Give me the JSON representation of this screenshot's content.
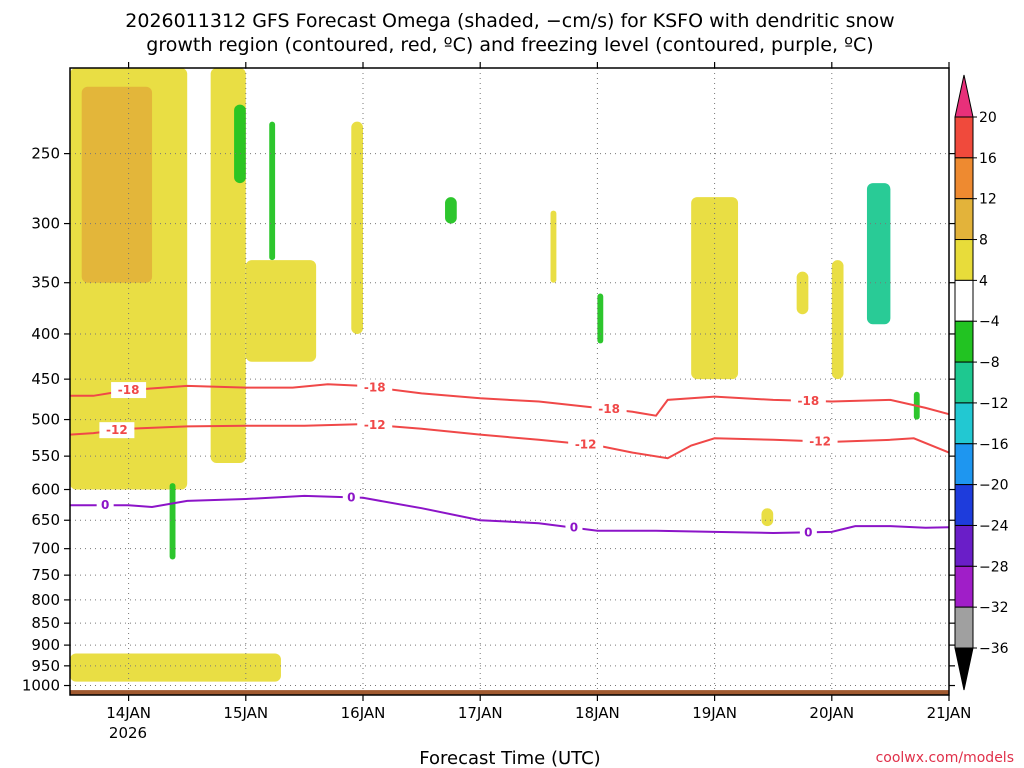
{
  "title_line1": "2026011312 GFS Forecast Omega (shaded, −cm/s) for KSFO with dendritic snow",
  "title_line2": "growth region (contoured, red, ºC) and freezing level (contoured, purple, ºC)",
  "credit": "coolwx.com/models",
  "chart_data": {
    "type": "heatmap",
    "xlabel": "Forecast Time (UTC)",
    "x_ticks": [
      "14JAN",
      "15JAN",
      "16JAN",
      "17JAN",
      "18JAN",
      "19JAN",
      "20JAN",
      "21JAN"
    ],
    "x_tick_days": [
      14,
      15,
      16,
      17,
      18,
      19,
      20,
      21
    ],
    "x_year_label": "2026",
    "xlim_days": [
      13.5,
      21.0
    ],
    "ylabel": "",
    "y_ticks": [
      250,
      300,
      350,
      400,
      450,
      500,
      550,
      600,
      650,
      700,
      750,
      800,
      850,
      900,
      950,
      1000
    ],
    "ylim_hpa": [
      200,
      1025
    ],
    "y_scale": "log-pressure (inverted)",
    "grid": true,
    "colorbar": {
      "levels": [
        20,
        16,
        12,
        8,
        4,
        -4,
        -8,
        -12,
        -16,
        -20,
        -24,
        -28,
        -32,
        -36
      ],
      "colors": [
        "#e8307a",
        "#f04a3c",
        "#ee8a30",
        "#e3b33a",
        "#e8dc3a",
        "#ffffff",
        "#22c322",
        "#1ec890",
        "#22c8d2",
        "#1e96f0",
        "#1e3cdc",
        "#6a1ec8",
        "#a01ec8",
        "#a0a0a0",
        "#000000"
      ]
    },
    "contours": [
      {
        "name": "-18",
        "color": "#f04848",
        "labels_at_days": [
          14.0,
          16.1,
          18.1,
          19.8
        ],
        "points": [
          [
            13.5,
            470
          ],
          [
            13.7,
            470
          ],
          [
            14.0,
            463
          ],
          [
            14.5,
            458
          ],
          [
            15.0,
            460
          ],
          [
            15.4,
            460
          ],
          [
            15.7,
            456
          ],
          [
            16.0,
            458
          ],
          [
            16.5,
            467
          ],
          [
            17.0,
            473
          ],
          [
            17.5,
            477
          ],
          [
            18.0,
            485
          ],
          [
            18.3,
            490
          ],
          [
            18.5,
            495
          ],
          [
            18.6,
            475
          ],
          [
            19.0,
            471
          ],
          [
            19.5,
            475
          ],
          [
            20.0,
            477
          ],
          [
            20.5,
            475
          ],
          [
            20.8,
            485
          ],
          [
            21.0,
            493
          ]
        ]
      },
      {
        "name": "-12",
        "color": "#f04848",
        "labels_at_days": [
          13.9,
          16.1,
          17.9,
          19.9
        ],
        "points": [
          [
            13.5,
            520
          ],
          [
            13.7,
            518
          ],
          [
            14.0,
            512
          ],
          [
            14.5,
            509
          ],
          [
            15.0,
            508
          ],
          [
            15.5,
            508
          ],
          [
            16.0,
            506
          ],
          [
            16.5,
            512
          ],
          [
            17.0,
            520
          ],
          [
            17.5,
            527
          ],
          [
            18.0,
            535
          ],
          [
            18.3,
            545
          ],
          [
            18.6,
            553
          ],
          [
            18.8,
            535
          ],
          [
            19.0,
            525
          ],
          [
            19.5,
            527
          ],
          [
            20.0,
            530
          ],
          [
            20.5,
            527
          ],
          [
            20.7,
            525
          ],
          [
            21.0,
            545
          ]
        ]
      },
      {
        "name": "0",
        "color": "#8c14c8",
        "labels_at_days": [
          13.8,
          15.9,
          17.8,
          19.8
        ],
        "points": [
          [
            13.5,
            625
          ],
          [
            13.8,
            625
          ],
          [
            14.0,
            625
          ],
          [
            14.2,
            628
          ],
          [
            14.5,
            618
          ],
          [
            15.0,
            615
          ],
          [
            15.5,
            610
          ],
          [
            16.0,
            613
          ],
          [
            16.5,
            630
          ],
          [
            17.0,
            650
          ],
          [
            17.5,
            655
          ],
          [
            18.0,
            668
          ],
          [
            18.5,
            668
          ],
          [
            19.0,
            670
          ],
          [
            19.5,
            672
          ],
          [
            20.0,
            670
          ],
          [
            20.2,
            660
          ],
          [
            20.5,
            660
          ],
          [
            20.8,
            663
          ],
          [
            21.0,
            662
          ]
        ]
      }
    ],
    "omega_regions": [
      {
        "day_start": 13.5,
        "day_end": 14.5,
        "p_top": 200,
        "p_bottom": 600,
        "value": 6
      },
      {
        "day_start": 13.6,
        "day_end": 14.2,
        "p_top": 210,
        "p_bottom": 350,
        "value": 10
      },
      {
        "day_start": 14.7,
        "day_end": 15.0,
        "p_top": 200,
        "p_bottom": 560,
        "value": 6
      },
      {
        "day_start": 15.0,
        "day_end": 15.6,
        "p_top": 330,
        "p_bottom": 430,
        "value": 6
      },
      {
        "day_start": 15.9,
        "day_end": 16.0,
        "p_top": 230,
        "p_bottom": 400,
        "value": 6
      },
      {
        "day_start": 17.6,
        "day_end": 17.65,
        "p_top": 290,
        "p_bottom": 350,
        "value": 6
      },
      {
        "day_start": 18.8,
        "day_end": 19.2,
        "p_top": 280,
        "p_bottom": 450,
        "value": 6
      },
      {
        "day_start": 19.7,
        "day_end": 19.8,
        "p_top": 340,
        "p_bottom": 380,
        "value": 6
      },
      {
        "day_start": 20.0,
        "day_end": 20.1,
        "p_top": 330,
        "p_bottom": 450,
        "value": 6
      },
      {
        "day_start": 19.4,
        "day_end": 19.5,
        "p_top": 630,
        "p_bottom": 660,
        "value": 6
      },
      {
        "day_start": 13.5,
        "day_end": 15.3,
        "p_top": 920,
        "p_bottom": 990,
        "value": 6
      },
      {
        "day_start": 14.9,
        "day_end": 15.0,
        "p_top": 220,
        "p_bottom": 270,
        "value": -6
      },
      {
        "day_start": 15.2,
        "day_end": 15.25,
        "p_top": 230,
        "p_bottom": 330,
        "value": -6
      },
      {
        "day_start": 16.7,
        "day_end": 16.8,
        "p_top": 280,
        "p_bottom": 300,
        "value": -6
      },
      {
        "day_start": 18.0,
        "day_end": 18.05,
        "p_top": 360,
        "p_bottom": 410,
        "value": -6
      },
      {
        "day_start": 20.3,
        "day_end": 20.5,
        "p_top": 270,
        "p_bottom": 390,
        "value": -10
      },
      {
        "day_start": 14.35,
        "day_end": 14.4,
        "p_top": 590,
        "p_bottom": 720,
        "value": -6
      },
      {
        "day_start": 20.7,
        "day_end": 20.75,
        "p_top": 465,
        "p_bottom": 500,
        "value": -6
      }
    ],
    "terrain_hpa": 1012
  }
}
